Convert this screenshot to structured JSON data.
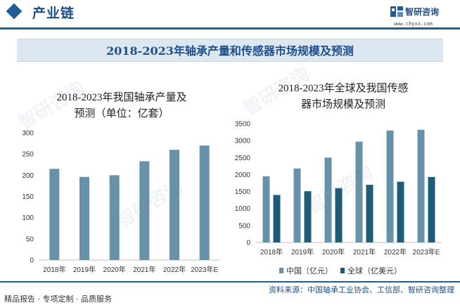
{
  "header": {
    "section_title": "产业链",
    "brand_name": "智研咨询",
    "brand_url": "www.chyxx.com",
    "accent_color": "#1e5d96"
  },
  "banner": {
    "title": "2018-2023年轴承产量和传感器市场规模及预测"
  },
  "watermark": {
    "text": "智研咨询"
  },
  "footer": {
    "left_text": "精品报告 · 专项定制 · 品质服务",
    "source": "资料来源：中国轴承工业协会、工信部、智研咨询整理"
  },
  "chart_data": [
    {
      "type": "bar",
      "title": "2018-2023年我国轴承产量及预测（单位：亿套）",
      "title_lines": [
        "2018-2023年我国轴承产量及",
        "预测（单位：亿套）"
      ],
      "categories": [
        "2018年",
        "2019年",
        "2020年",
        "2021年",
        "2022年",
        "2023年E"
      ],
      "series": [
        {
          "values": [
            215,
            196,
            200,
            233,
            260,
            270
          ],
          "color": "#6892aa"
        }
      ],
      "ylim": [
        0,
        300
      ],
      "yticks": [
        0,
        50,
        100,
        150,
        200,
        250,
        300
      ],
      "grid": false,
      "legend": "none"
    },
    {
      "type": "bar",
      "title": "2018-2023年全球及我国传感器市场规模及预测",
      "title_lines": [
        "2018-2023年全球及我国传感",
        "器市场规模及预测"
      ],
      "categories": [
        "2018年",
        "2019年",
        "2020年",
        "2021年",
        "2022年",
        "2023年E"
      ],
      "series": [
        {
          "name": "中国（亿元）",
          "values": [
            1950,
            2180,
            2500,
            2970,
            3300,
            3320
          ],
          "color": "#6892aa"
        },
        {
          "name": "全球（亿美元）",
          "values": [
            1400,
            1510,
            1600,
            1700,
            1790,
            1930
          ],
          "color": "#1d5d7a"
        }
      ],
      "ylim": [
        0,
        3500
      ],
      "yticks": [
        0,
        500,
        1000,
        1500,
        2000,
        2500,
        3000,
        3500
      ],
      "grid": false,
      "legend": "bottom"
    }
  ]
}
